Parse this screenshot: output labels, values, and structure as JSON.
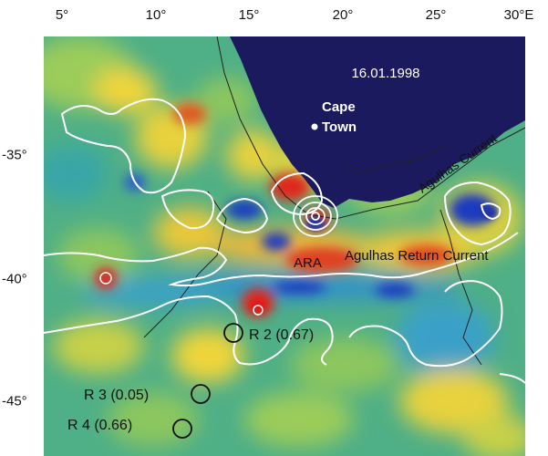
{
  "axes": {
    "longitude_ticks": [
      "5°",
      "10°",
      "15°",
      "20°",
      "25°",
      "30°E"
    ],
    "latitude_ticks": [
      "-35°",
      "-40°",
      "-45°"
    ]
  },
  "map": {
    "date": "16.01.1998",
    "city": "Cape\nTown",
    "city_line1": "Cape",
    "city_line2": "Town",
    "labels": {
      "agulhas_current": "Agulhas Current",
      "agulhas_return_current": "Agulhas Return Current",
      "ara": "ARA"
    },
    "rings": [
      {
        "label": "R 2 (0.67)"
      },
      {
        "label": "R 3 (0.05)"
      },
      {
        "label": "R 4 (0.66)"
      }
    ],
    "colors": {
      "land": "#1c1a5e",
      "background": "#4faf86",
      "contour": "#ffffff",
      "warm": "#e0281e",
      "cold": "#1f3bbf"
    }
  }
}
